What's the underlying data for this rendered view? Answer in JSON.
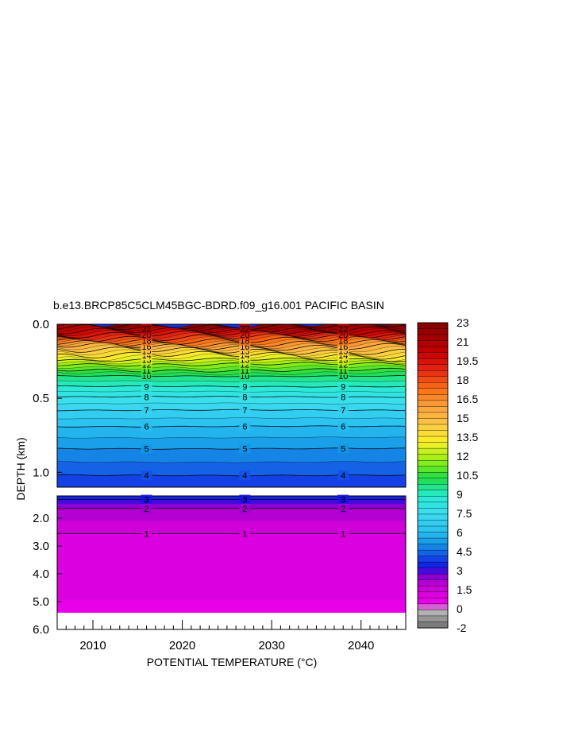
{
  "chart_data": {
    "type": "contour",
    "title": "b.e13.BRCP85C5CLM45BGC-BDRD.f09_g16.001 PACIFIC BASIN",
    "xlabel": "POTENTIAL TEMPERATURE (°C)",
    "ylabel": "DEPTH (km)",
    "x_ticks": [
      "2010",
      "2020",
      "2030",
      "2040"
    ],
    "x_range": [
      2006,
      2045
    ],
    "panels": [
      {
        "name": "upper",
        "depth_range_km": [
          0.0,
          1.1
        ],
        "y_ticks": [
          "0.0",
          "0.5",
          "1.0"
        ],
        "contour_labels": [
          {
            "value": "4",
            "depth_km": 1.02
          },
          {
            "value": "5",
            "depth_km": 0.84
          },
          {
            "value": "6",
            "depth_km": 0.69
          },
          {
            "value": "7",
            "depth_km": 0.58
          },
          {
            "value": "8",
            "depth_km": 0.49
          },
          {
            "value": "9",
            "depth_km": 0.42
          },
          {
            "value": "10",
            "depth_km": 0.35
          },
          {
            "value": "11",
            "depth_km": 0.31
          },
          {
            "value": "12",
            "depth_km": 0.27
          },
          {
            "value": "13",
            "depth_km": 0.24
          },
          {
            "value": "14",
            "depth_km": 0.21
          },
          {
            "value": "15",
            "depth_km": 0.18
          },
          {
            "value": "16",
            "depth_km": 0.15
          },
          {
            "value": "18",
            "depth_km": 0.11
          },
          {
            "value": "20",
            "depth_km": 0.07
          },
          {
            "value": "22",
            "depth_km": 0.03
          }
        ]
      },
      {
        "name": "lower",
        "depth_range_km": [
          1.2,
          6.0
        ],
        "y_ticks": [
          "2.0",
          "3.0",
          "4.0",
          "5.0",
          "6.0"
        ],
        "bottom_km": 5.4,
        "contour_labels": [
          {
            "value": "3",
            "depth_km": 1.33
          },
          {
            "value": "2",
            "depth_km": 1.65
          },
          {
            "value": "1",
            "depth_km": 2.55
          }
        ]
      }
    ],
    "contour_label_years": [
      2016,
      2027,
      2038
    ],
    "colorbar": {
      "min": -2,
      "max": 23.5,
      "interval": 0.5,
      "labels": [
        "23",
        "21",
        "19.5",
        "18",
        "16.5",
        "15",
        "13.5",
        "12",
        "10.5",
        "9",
        "7.5",
        "6",
        "4.5",
        "3",
        "1.5",
        "0",
        "-2"
      ]
    }
  }
}
